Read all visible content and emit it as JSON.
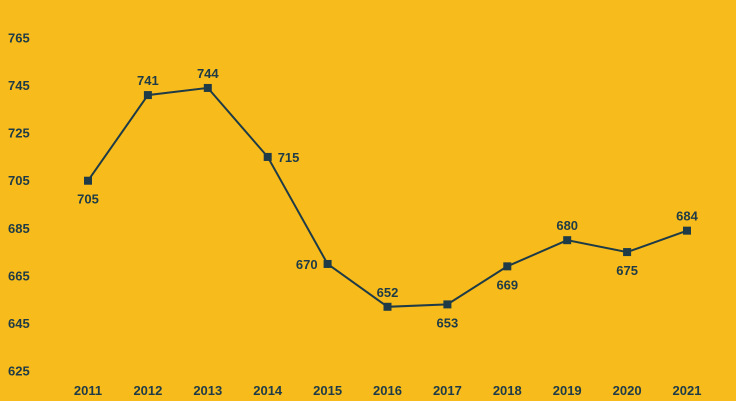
{
  "chart_data": {
    "type": "line",
    "title": "",
    "xlabel": "",
    "ylabel": "",
    "x": [
      "2011",
      "2012",
      "2013",
      "2014",
      "2015",
      "2016",
      "2017",
      "2018",
      "2019",
      "2020",
      "2021"
    ],
    "series": [
      {
        "values": [
          705,
          741,
          744,
          715,
          670,
          652,
          653,
          669,
          680,
          675,
          684
        ]
      }
    ],
    "data_labels": [
      "705",
      "741",
      "744",
      "715",
      "670",
      "652",
      "653",
      "669",
      "680",
      "675",
      "684"
    ],
    "label_positions": [
      "below",
      "above",
      "above",
      "right",
      "left",
      "above",
      "below",
      "below",
      "above",
      "below",
      "above"
    ],
    "ylim": [
      625,
      765
    ],
    "yticks": [
      625,
      645,
      665,
      685,
      705,
      725,
      745,
      765
    ],
    "ytick_labels": [
      "625",
      "645",
      "665",
      "685",
      "705",
      "725",
      "745",
      "765"
    ],
    "grid": false,
    "legend": "none",
    "colors": {
      "background": "#F7BC1B",
      "line": "#1F3B47",
      "marker": "#1F3B47",
      "text": "#1F3B47"
    }
  }
}
